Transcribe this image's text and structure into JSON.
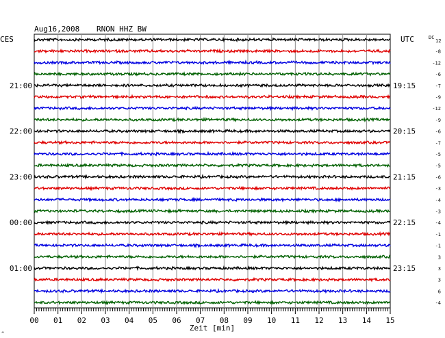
{
  "chart_data": {
    "type": "line",
    "title": "Aug16,2008",
    "station": "RNON HHZ BW",
    "xlabel": "Zeit [min]",
    "xlim": [
      0,
      15
    ],
    "x_ticks": [
      "00",
      "01",
      "02",
      "03",
      "04",
      "05",
      "06",
      "07",
      "08",
      "09",
      "10",
      "11",
      "12",
      "13",
      "14",
      "15"
    ],
    "left_header": "CES",
    "right_header": "UTC",
    "dc_header": "DC",
    "dc_header_top": "12",
    "trace_colors": [
      "#000000",
      "#e00000",
      "#0000e0",
      "#006000"
    ],
    "left_time_labels": [
      {
        "trace": 4,
        "text": "21:00"
      },
      {
        "trace": 8,
        "text": "22:00"
      },
      {
        "trace": 12,
        "text": "23:00"
      },
      {
        "trace": 16,
        "text": "00:00"
      },
      {
        "trace": 20,
        "text": "01:00"
      }
    ],
    "right_time_labels": [
      {
        "trace": 4,
        "text": "19:15"
      },
      {
        "trace": 8,
        "text": "20:15"
      },
      {
        "trace": 12,
        "text": "21:15"
      },
      {
        "trace": 16,
        "text": "22:15"
      },
      {
        "trace": 20,
        "text": "23:15"
      }
    ],
    "dc_offsets": [
      "-8",
      "-12",
      "-6",
      "-7",
      "-9",
      "-12",
      "-9",
      "-6",
      "-7",
      "-5",
      "-5",
      "-6",
      "-3",
      "-4",
      "-3",
      "-4",
      "-1",
      "-1",
      "3",
      "3",
      "3",
      "6",
      "-4"
    ],
    "footer_mark": "^"
  }
}
